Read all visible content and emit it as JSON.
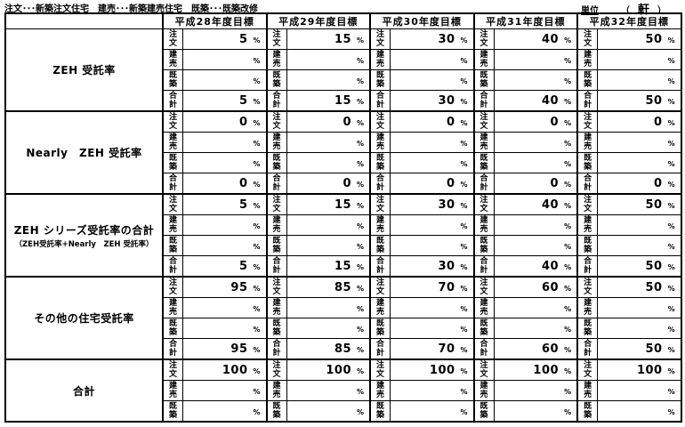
{
  "legend": "注文･･･新築注文住宅　建売･･･新築建売住宅　既築･･･既築改修",
  "unit": {
    "label": "単位",
    "paren_open": "（",
    "value": "軒",
    "paren_close": "）"
  },
  "table": {
    "year_headers": [
      "平成28年度目標",
      "平成29年度目標",
      "平成30年度目標",
      "平成31年度目標",
      "平成32年度目標"
    ],
    "percent_sign": "%",
    "groups": [
      {
        "label": "ZEH 受託率",
        "sublabel": "",
        "rows": [
          {
            "label": "注文",
            "values": [
              "5",
              "15",
              "30",
              "40",
              "50"
            ]
          },
          {
            "label": "建売",
            "values": [
              "",
              "",
              "",
              "",
              ""
            ]
          },
          {
            "label": "既築",
            "values": [
              "",
              "",
              "",
              "",
              ""
            ]
          },
          {
            "label": "合計",
            "values": [
              "5",
              "15",
              "30",
              "40",
              "50"
            ]
          }
        ]
      },
      {
        "label": "Nearly　ZEH 受託率",
        "sublabel": "",
        "rows": [
          {
            "label": "注文",
            "values": [
              "0",
              "0",
              "0",
              "0",
              "0"
            ]
          },
          {
            "label": "建売",
            "values": [
              "",
              "",
              "",
              "",
              ""
            ]
          },
          {
            "label": "既築",
            "values": [
              "",
              "",
              "",
              "",
              ""
            ]
          },
          {
            "label": "合計",
            "values": [
              "0",
              "0",
              "0",
              "0",
              "0"
            ]
          }
        ]
      },
      {
        "label": "ZEH シリーズ受託率の合計",
        "sublabel": "（ZEH受託率+Nearly　ZEH 受託率）",
        "rows": [
          {
            "label": "注文",
            "values": [
              "5",
              "15",
              "30",
              "40",
              "50"
            ]
          },
          {
            "label": "建売",
            "values": [
              "",
              "",
              "",
              "",
              ""
            ]
          },
          {
            "label": "既築",
            "values": [
              "",
              "",
              "",
              "",
              ""
            ]
          },
          {
            "label": "合計",
            "values": [
              "5",
              "15",
              "30",
              "40",
              "50"
            ]
          }
        ]
      },
      {
        "label": "その他の住宅受託率",
        "sublabel": "",
        "rows": [
          {
            "label": "注文",
            "values": [
              "95",
              "85",
              "70",
              "60",
              "50"
            ]
          },
          {
            "label": "建売",
            "values": [
              "",
              "",
              "",
              "",
              ""
            ]
          },
          {
            "label": "既築",
            "values": [
              "",
              "",
              "",
              "",
              ""
            ]
          },
          {
            "label": "合計",
            "values": [
              "95",
              "85",
              "70",
              "60",
              "50"
            ]
          }
        ]
      },
      {
        "label": "合計",
        "sublabel": "",
        "rows": [
          {
            "label": "注文",
            "values": [
              "100",
              "100",
              "100",
              "100",
              "100"
            ]
          },
          {
            "label": "建売",
            "values": [
              "",
              "",
              "",
              "",
              ""
            ]
          },
          {
            "label": "既築",
            "values": [
              "",
              "",
              "",
              "",
              ""
            ]
          }
        ]
      }
    ]
  }
}
